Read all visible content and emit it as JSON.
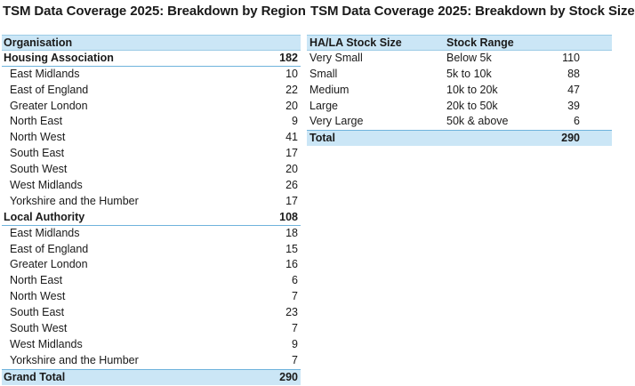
{
  "region": {
    "title": "TSM Data Coverage 2025: Breakdown by Region",
    "header": "Organisation",
    "groups": [
      {
        "name": "Housing Association",
        "total": "182",
        "items": [
          {
            "name": "East Midlands",
            "value": "10"
          },
          {
            "name": "East of England",
            "value": "22"
          },
          {
            "name": "Greater London",
            "value": "20"
          },
          {
            "name": "North East",
            "value": "9"
          },
          {
            "name": "North West",
            "value": "41"
          },
          {
            "name": "South East",
            "value": "17"
          },
          {
            "name": "South West",
            "value": "20"
          },
          {
            "name": "West Midlands",
            "value": "26"
          },
          {
            "name": "Yorkshire and the Humber",
            "value": "17"
          }
        ]
      },
      {
        "name": "Local Authority",
        "total": "108",
        "items": [
          {
            "name": "East Midlands",
            "value": "18"
          },
          {
            "name": "East of England",
            "value": "15"
          },
          {
            "name": "Greater London",
            "value": "16"
          },
          {
            "name": "North East",
            "value": "6"
          },
          {
            "name": "North West",
            "value": "7"
          },
          {
            "name": "South East",
            "value": "23"
          },
          {
            "name": "South West",
            "value": "7"
          },
          {
            "name": "West Midlands",
            "value": "9"
          },
          {
            "name": "Yorkshire and the Humber",
            "value": "7"
          }
        ]
      }
    ],
    "grand_total_label": "Grand Total",
    "grand_total": "290"
  },
  "stock": {
    "title": "TSM Data Coverage 2025: Breakdown by Stock Size",
    "headers": [
      "HA/LA Stock Size",
      "Stock Range",
      ""
    ],
    "rows": [
      {
        "size": "Very Small",
        "range": "Below 5k",
        "count": "110"
      },
      {
        "size": "Small",
        "range": "5k to 10k",
        "count": "88"
      },
      {
        "size": "Medium",
        "range": "10k to 20k",
        "count": "47"
      },
      {
        "size": "Large",
        "range": "20k to 50k",
        "count": "39"
      },
      {
        "size": "Very Large",
        "range": "50k & above",
        "count": "6"
      }
    ],
    "total_label": "Total",
    "total": "290"
  },
  "colors": {
    "header_fill": "#cbe6f6",
    "border_accent": "#6fb3dc"
  }
}
